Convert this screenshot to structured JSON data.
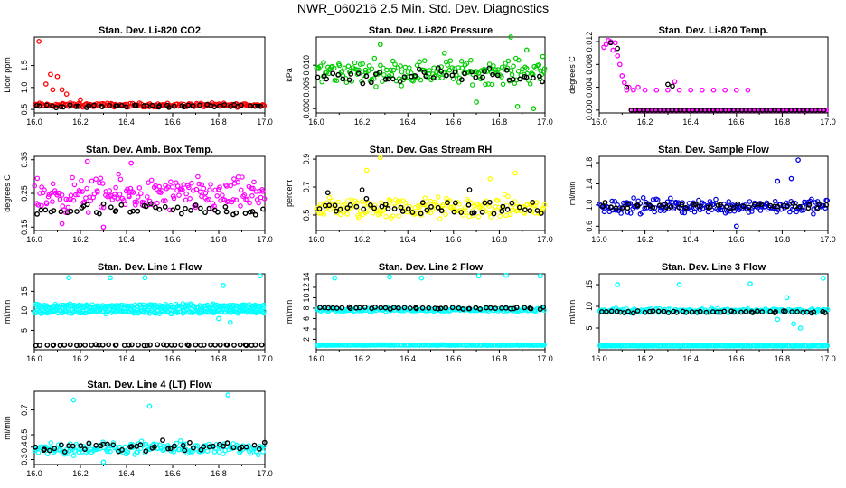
{
  "title": "NWR_060216  2.5 Min. Std. Dev. Diagnostics",
  "chart_data": [
    {
      "type": "scatter",
      "title": "Stan. Dev. Li-820 CO2",
      "xlabel": "",
      "ylabel": "Licor ppm",
      "xlim": [
        16.0,
        17.0
      ],
      "ylim": [
        0.42,
        2.15
      ],
      "x_ticks": [
        "16.0",
        "16.2",
        "16.4",
        "16.6",
        "16.8",
        "17.0"
      ],
      "y_ticks": [
        {
          "value": 0.5,
          "label": "0.5"
        },
        {
          "value": 1.0,
          "label": "1.0"
        },
        {
          "value": 1.5,
          "label": "1.5"
        }
      ],
      "series": [
        {
          "name": "colored",
          "color": "#ff0000",
          "base": 0.6,
          "noise": 0.04,
          "points": [
            [
              16.02,
              2.05
            ],
            [
              16.05,
              1.08
            ],
            [
              16.07,
              1.3
            ],
            [
              16.08,
              0.95
            ],
            [
              16.1,
              1.25
            ],
            [
              16.12,
              0.95
            ],
            [
              16.14,
              0.85
            ],
            [
              16.2,
              0.72
            ]
          ]
        },
        {
          "name": "black",
          "color": "#000000",
          "base": 0.58,
          "noise": 0.03,
          "points": []
        }
      ]
    },
    {
      "type": "scatter",
      "title": "Stan. Dev. Li-820 Pressure",
      "xlabel": "",
      "ylabel": "kPa",
      "xlim": [
        16.0,
        17.0
      ],
      "ylim": [
        -0.001,
        0.0165
      ],
      "x_ticks": [
        "16.0",
        "16.2",
        "16.4",
        "16.6",
        "16.8",
        "17.0"
      ],
      "y_ticks": [
        {
          "value": 0.0,
          "label": "0.000"
        },
        {
          "value": 0.005,
          "label": "0.005"
        },
        {
          "value": 0.01,
          "label": "0.010"
        }
      ],
      "series": [
        {
          "name": "colored",
          "color": "#00cc00",
          "base": 0.0085,
          "noise": 0.0025,
          "points": [
            [
              16.28,
              0.0148
            ],
            [
              16.56,
              0.0128
            ],
            [
              16.85,
              0.0165
            ],
            [
              16.92,
              0.0135
            ],
            [
              16.99,
              0.012
            ],
            [
              16.7,
              0.0015
            ],
            [
              16.88,
              0.0005
            ],
            [
              16.95,
              0.0
            ]
          ]
        },
        {
          "name": "black",
          "color": "#000000",
          "base": 0.0075,
          "noise": 0.0015,
          "points": []
        }
      ]
    },
    {
      "type": "scatter",
      "title": "Stan. Dev. Li-820 Temp.",
      "xlabel": "",
      "ylabel": "degrees C",
      "xlim": [
        16.0,
        17.0
      ],
      "ylim": [
        -0.0005,
        0.0128
      ],
      "x_ticks": [
        "16.0",
        "16.2",
        "16.4",
        "16.6",
        "16.8",
        "17.0"
      ],
      "y_ticks": [
        {
          "value": 0.0,
          "label": "0.000"
        },
        {
          "value": 0.004,
          "label": "0.004"
        },
        {
          "value": 0.008,
          "label": "0.008"
        },
        {
          "value": 0.012,
          "label": "0.012"
        }
      ],
      "series": [
        {
          "name": "colored",
          "color": "#ff00ff",
          "base": 0.0,
          "noise": 0.0,
          "points": [
            [
              16.02,
              0.011
            ],
            [
              16.03,
              0.0115
            ],
            [
              16.04,
              0.0122
            ],
            [
              16.05,
              0.012
            ],
            [
              16.06,
              0.0105
            ],
            [
              16.07,
              0.0118
            ],
            [
              16.08,
              0.0095
            ],
            [
              16.09,
              0.008
            ],
            [
              16.1,
              0.006
            ],
            [
              16.11,
              0.0048
            ],
            [
              16.12,
              0.0035
            ],
            [
              16.13,
              0.004
            ],
            [
              16.15,
              0.0035
            ],
            [
              16.17,
              0.004
            ],
            [
              16.2,
              0.0035
            ],
            [
              16.25,
              0.0035
            ],
            [
              16.3,
              0.0035
            ],
            [
              16.33,
              0.005
            ],
            [
              16.35,
              0.0035
            ],
            [
              16.4,
              0.0035
            ],
            [
              16.45,
              0.0035
            ],
            [
              16.5,
              0.0035
            ],
            [
              16.55,
              0.0035
            ],
            [
              16.6,
              0.0035
            ],
            [
              16.65,
              0.0035
            ]
          ]
        },
        {
          "name": "black",
          "color": "#000000",
          "base": 0.0,
          "noise": 0.0,
          "points": [
            [
              16.12,
              0.004
            ],
            [
              16.3,
              0.0045
            ],
            [
              16.32,
              0.0042
            ],
            [
              16.05,
              0.0118
            ],
            [
              16.08,
              0.0108
            ]
          ]
        }
      ]
    },
    {
      "type": "scatter",
      "title": "Stan. Dev. Amb. Box Temp.",
      "xlabel": "",
      "ylabel": "degrees C",
      "xlim": [
        16.0,
        17.0
      ],
      "ylim": [
        0.14,
        0.36
      ],
      "x_ticks": [
        "16.0",
        "16.2",
        "16.4",
        "16.6",
        "16.8",
        "17.0"
      ],
      "y_ticks": [
        {
          "value": 0.15,
          "label": "0.15"
        },
        {
          "value": 0.25,
          "label": "0.25"
        },
        {
          "value": 0.35,
          "label": "0.35"
        }
      ],
      "series": [
        {
          "name": "colored",
          "color": "#ff00ff",
          "base": 0.245,
          "noise": 0.045,
          "points": [
            [
              16.23,
              0.345
            ],
            [
              16.42,
              0.34
            ],
            [
              16.3,
              0.15
            ],
            [
              16.12,
              0.16
            ]
          ]
        },
        {
          "name": "black",
          "color": "#000000",
          "base": 0.2,
          "noise": 0.018,
          "points": []
        }
      ]
    },
    {
      "type": "scatter",
      "title": "Stan. Dev. Gas Stream RH",
      "xlabel": "",
      "ylabel": "percent",
      "xlim": [
        16.0,
        17.0
      ],
      "ylim": [
        0.39,
        0.92
      ],
      "x_ticks": [
        "16.0",
        "16.2",
        "16.4",
        "16.6",
        "16.8",
        "17.0"
      ],
      "y_ticks": [
        {
          "value": 0.5,
          "label": "0.5"
        },
        {
          "value": 0.7,
          "label": "0.7"
        },
        {
          "value": 0.9,
          "label": "0.9"
        }
      ],
      "series": [
        {
          "name": "colored",
          "color": "#ffff00",
          "base": 0.55,
          "noise": 0.07,
          "points": [
            [
              16.28,
              0.91
            ],
            [
              16.22,
              0.82
            ],
            [
              16.87,
              0.8
            ],
            [
              16.76,
              0.76
            ]
          ]
        },
        {
          "name": "black",
          "color": "#000000",
          "base": 0.55,
          "noise": 0.05,
          "points": [
            [
              16.2,
              0.68
            ],
            [
              16.05,
              0.66
            ],
            [
              16.67,
              0.68
            ]
          ]
        }
      ]
    },
    {
      "type": "scatter",
      "title": "Stan. Dev. Sample Flow",
      "xlabel": "",
      "ylabel": "ml/min",
      "xlim": [
        16.0,
        17.0
      ],
      "ylim": [
        0.52,
        1.92
      ],
      "x_ticks": [
        "16.0",
        "16.2",
        "16.4",
        "16.6",
        "16.8",
        "17.0"
      ],
      "y_ticks": [
        {
          "value": 0.6,
          "label": "0.6"
        },
        {
          "value": 1.0,
          "label": "1.0"
        },
        {
          "value": 1.4,
          "label": "1.4"
        },
        {
          "value": 1.8,
          "label": "1.8"
        }
      ],
      "series": [
        {
          "name": "colored",
          "color": "#0000dd",
          "base": 0.98,
          "noise": 0.13,
          "points": [
            [
              16.87,
              1.85
            ],
            [
              16.78,
              1.45
            ],
            [
              16.84,
              1.5
            ],
            [
              16.6,
              0.6
            ]
          ]
        },
        {
          "name": "black",
          "color": "#000000",
          "base": 0.98,
          "noise": 0.06,
          "points": []
        }
      ]
    },
    {
      "type": "scatter",
      "title": "Stan. Dev. Line 1 Flow",
      "xlabel": "",
      "ylabel": "ml/min",
      "xlim": [
        16.0,
        17.0
      ],
      "ylim": [
        0.0,
        19.5
      ],
      "x_ticks": [
        "16.0",
        "16.2",
        "16.4",
        "16.6",
        "16.8",
        "17.0"
      ],
      "y_ticks": [
        {
          "value": 5,
          "label": "5"
        },
        {
          "value": 10,
          "label": "10"
        },
        {
          "value": 15,
          "label": "15"
        }
      ],
      "series": [
        {
          "name": "colored-band-1",
          "color": "#00ffff",
          "base": 11.2,
          "noise": 0.5,
          "points": [
            [
              16.15,
              18.5
            ],
            [
              16.33,
              18.5
            ],
            [
              16.48,
              18.5
            ],
            [
              16.82,
              16.5
            ],
            [
              16.98,
              19.0
            ],
            [
              16.8,
              8.0
            ],
            [
              16.85,
              7.0
            ],
            [
              16.78,
              9.5
            ]
          ]
        },
        {
          "name": "colored-band-2",
          "color": "#00ffff",
          "base": 9.8,
          "noise": 0.5,
          "points": []
        },
        {
          "name": "black",
          "color": "#000000",
          "base": 1.2,
          "noise": 0.12,
          "points": []
        }
      ]
    },
    {
      "type": "scatter",
      "title": "Stan. Dev. Line 2 Flow",
      "xlabel": "",
      "ylabel": "ml/min",
      "xlim": [
        16.0,
        17.0
      ],
      "ylim": [
        0.0,
        14.6
      ],
      "x_ticks": [
        "16.0",
        "16.2",
        "16.4",
        "16.6",
        "16.8",
        "17.0"
      ],
      "y_ticks": [
        {
          "value": 2,
          "label": "2"
        },
        {
          "value": 4,
          "label": "4"
        },
        {
          "value": 6,
          "label": "6"
        },
        {
          "value": 8,
          "label": "8"
        },
        {
          "value": 10,
          "label": "10"
        },
        {
          "value": 12,
          "label": "12"
        },
        {
          "value": 14,
          "label": "14"
        }
      ],
      "series": [
        {
          "name": "colored",
          "color": "#00ffff",
          "base": 7.7,
          "noise": 0.3,
          "points": [
            [
              16.08,
              13.8
            ],
            [
              16.32,
              14.0
            ],
            [
              16.46,
              13.8
            ],
            [
              16.71,
              14.2
            ],
            [
              16.83,
              14.3
            ],
            [
              16.98,
              14.2
            ]
          ]
        },
        {
          "name": "colored-base",
          "color": "#00ffff",
          "base": 0.9,
          "noise": 0.06,
          "points": []
        },
        {
          "name": "black",
          "color": "#000000",
          "base": 8.0,
          "noise": 0.25,
          "points": []
        }
      ]
    },
    {
      "type": "scatter",
      "title": "Stan. Dev. Line 3 Flow",
      "xlabel": "",
      "ylabel": "ml/min",
      "xlim": [
        16.0,
        17.0
      ],
      "ylim": [
        0.0,
        17.5
      ],
      "x_ticks": [
        "16.0",
        "16.2",
        "16.4",
        "16.6",
        "16.8",
        "17.0"
      ],
      "y_ticks": [
        {
          "value": 5,
          "label": "5"
        },
        {
          "value": 10,
          "label": "10"
        },
        {
          "value": 15,
          "label": "15"
        }
      ],
      "series": [
        {
          "name": "colored",
          "color": "#00ffff",
          "base": 9.0,
          "noise": 0.45,
          "points": [
            [
              16.08,
              15.0
            ],
            [
              16.35,
              15.0
            ],
            [
              16.66,
              15.2
            ],
            [
              16.98,
              16.5
            ],
            [
              16.82,
              12.0
            ],
            [
              16.85,
              6.0
            ],
            [
              16.88,
              5.0
            ],
            [
              16.78,
              7.0
            ]
          ]
        },
        {
          "name": "colored-base",
          "color": "#00ffff",
          "base": 0.9,
          "noise": 0.08,
          "points": []
        },
        {
          "name": "black",
          "color": "#000000",
          "base": 8.7,
          "noise": 0.25,
          "points": []
        }
      ]
    },
    {
      "type": "scatter",
      "title": "Stan. Dev. Line 4 (LT) Flow",
      "xlabel": "",
      "ylabel": "ml/min",
      "xlim": [
        16.0,
        17.0
      ],
      "ylim": [
        0.26,
        0.85
      ],
      "x_ticks": [
        "16.0",
        "16.2",
        "16.4",
        "16.6",
        "16.8",
        "17.0"
      ],
      "y_ticks": [
        {
          "value": 0.3,
          "label": "0.3"
        },
        {
          "value": 0.4,
          "label": "0.4"
        },
        {
          "value": 0.5,
          "label": "0.5"
        },
        {
          "value": 0.7,
          "label": "0.7"
        }
      ],
      "series": [
        {
          "name": "colored",
          "color": "#00ffff",
          "base": 0.39,
          "noise": 0.045,
          "points": [
            [
              16.17,
              0.78
            ],
            [
              16.5,
              0.73
            ],
            [
              16.84,
              0.82
            ],
            [
              16.3,
              0.28
            ]
          ]
        },
        {
          "name": "black",
          "color": "#000000",
          "base": 0.4,
          "noise": 0.04,
          "points": []
        }
      ]
    }
  ]
}
